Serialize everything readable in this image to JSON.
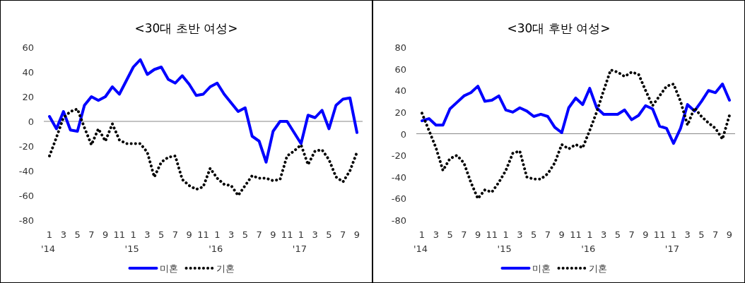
{
  "chart_data": [
    {
      "type": "line",
      "title": "<30대 초반 여성>",
      "categories": [
        "1\n'14",
        null,
        "3",
        null,
        "5",
        null,
        "7",
        null,
        "9",
        null,
        "11",
        null,
        "1\n'15",
        null,
        "3",
        null,
        "5",
        null,
        "7",
        null,
        "9",
        null,
        "11",
        null,
        "1\n'16",
        null,
        "3",
        null,
        "5",
        null,
        "7",
        null,
        "9",
        null,
        "11",
        null,
        "1\n'17",
        null,
        "3",
        null,
        "5",
        null,
        "7",
        null,
        "9"
      ],
      "series": [
        {
          "name": "미혼",
          "color": "#0000ff",
          "line_style": "solid",
          "values": [
            4,
            -6,
            8,
            -7,
            -8,
            13,
            20,
            17,
            20,
            28,
            22,
            33,
            44,
            50,
            38,
            42,
            44,
            34,
            31,
            37,
            30,
            21,
            22,
            28,
            31,
            22,
            15,
            8,
            11,
            -12,
            -16,
            -33,
            -8,
            0,
            0,
            -9,
            -18,
            5,
            3,
            9,
            -6,
            13,
            18,
            19,
            -9
          ]
        },
        {
          "name": "기혼",
          "color": "#000000",
          "line_style": "dotted",
          "values": [
            -28,
            -13,
            3,
            8,
            10,
            -5,
            -19,
            -6,
            -16,
            -2,
            -15,
            -18,
            -18,
            -18,
            -25,
            -45,
            -33,
            -29,
            -28,
            -47,
            -52,
            -55,
            -53,
            -38,
            -46,
            -51,
            -52,
            -60,
            -52,
            -44,
            -46,
            -46,
            -48,
            -47,
            -28,
            -24,
            -19,
            -35,
            -24,
            -23,
            -31,
            -45,
            -49,
            -40,
            -25
          ]
        }
      ],
      "ylim": [
        -80,
        60
      ],
      "yticks": [
        -80,
        -60,
        -40,
        -20,
        0,
        20,
        40,
        60
      ],
      "ref_lines": [
        {
          "axis": "y",
          "value": 0,
          "color": "#888888"
        }
      ],
      "legend": "bottom"
    },
    {
      "type": "line",
      "title": "<30대 후반 여성>",
      "categories": [
        "1\n'14",
        null,
        "3",
        null,
        "5",
        null,
        "7",
        null,
        "9",
        null,
        "11",
        null,
        "1\n'15",
        null,
        "3",
        null,
        "5",
        null,
        "7",
        null,
        "9",
        null,
        "11",
        null,
        "1\n'16",
        null,
        "3",
        null,
        "5",
        null,
        "7",
        null,
        "9",
        null,
        "11",
        null,
        "1\n'17",
        null,
        "3",
        null,
        "5",
        null,
        "7",
        null,
        "9"
      ],
      "series": [
        {
          "name": "미혼",
          "color": "#0000ff",
          "line_style": "solid",
          "values": [
            12,
            14,
            8,
            8,
            23,
            29,
            35,
            38,
            44,
            30,
            31,
            35,
            22,
            20,
            24,
            21,
            16,
            18,
            16,
            6,
            1,
            24,
            33,
            27,
            42,
            24,
            18,
            18,
            18,
            22,
            13,
            17,
            26,
            23,
            7,
            5,
            -9,
            5,
            27,
            21,
            30,
            40,
            38,
            46,
            31
          ]
        },
        {
          "name": "기혼",
          "color": "#000000",
          "line_style": "dotted",
          "values": [
            19,
            3,
            -13,
            -34,
            -23,
            -20,
            -27,
            -45,
            -60,
            -52,
            -54,
            -45,
            -34,
            -18,
            -16,
            -40,
            -42,
            -42,
            -37,
            -27,
            -10,
            -14,
            -10,
            -13,
            3,
            20,
            40,
            59,
            57,
            53,
            57,
            55,
            40,
            26,
            35,
            44,
            46,
            30,
            8,
            24,
            16,
            10,
            5,
            -5,
            17
          ]
        }
      ],
      "ylim": [
        -80,
        80
      ],
      "yticks": [
        -80,
        -60,
        -40,
        -20,
        0,
        20,
        40,
        60,
        80
      ],
      "ref_lines": [
        {
          "axis": "y",
          "value": 0,
          "color": "#888888"
        }
      ],
      "legend": "bottom"
    }
  ]
}
